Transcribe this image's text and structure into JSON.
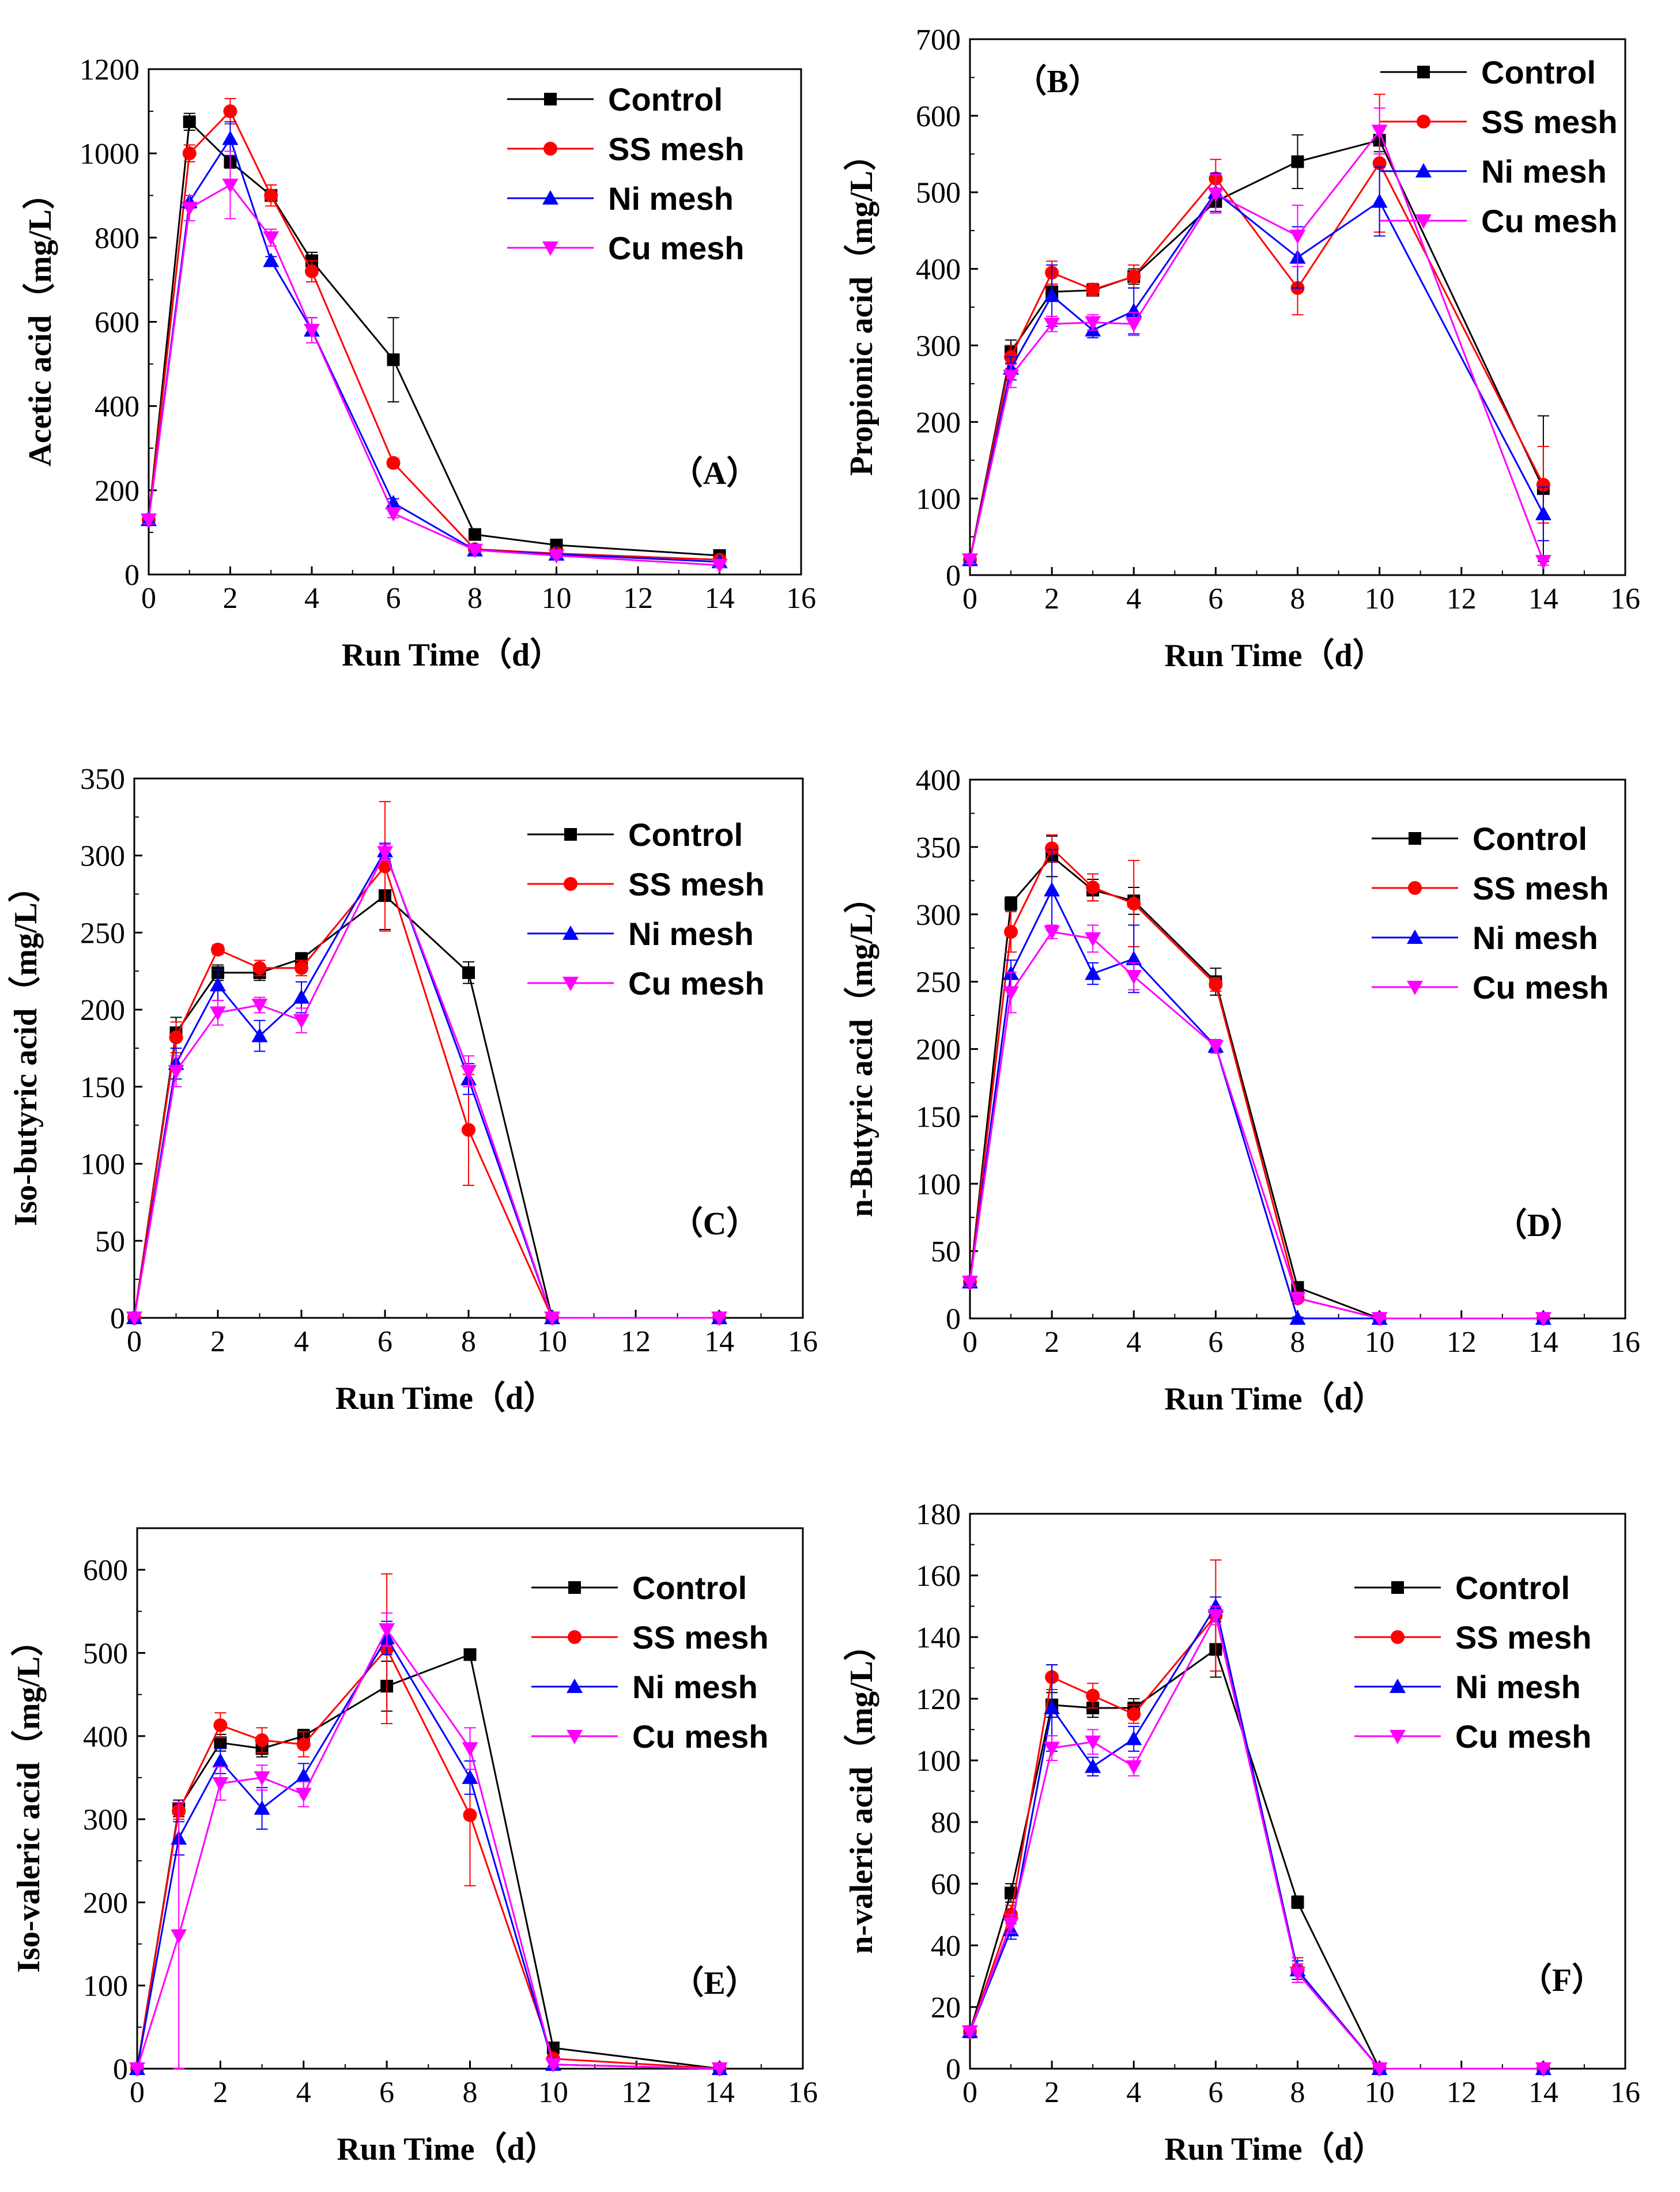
{
  "series_style": [
    {
      "name": "Control",
      "color": "#000000",
      "marker": "square"
    },
    {
      "name": "SS mesh",
      "color": "#ff0000",
      "marker": "circle"
    },
    {
      "name": "Ni mesh",
      "color": "#0000ff",
      "marker": "triangle-up"
    },
    {
      "name": "Cu mesh",
      "color": "#ff00ff",
      "marker": "triangle-down"
    }
  ],
  "chart_data": [
    {
      "type": "line",
      "panel_label": "（A）",
      "xlabel": "Run Time（d）",
      "ylabel": "Acetic acid（mg/L）",
      "xlim": [
        0,
        16
      ],
      "ylim": [
        0,
        1200
      ],
      "xticks": [
        0,
        2,
        4,
        6,
        8,
        10,
        12,
        14,
        16
      ],
      "yticks": [
        0,
        200,
        400,
        600,
        800,
        1000,
        1200
      ],
      "x": [
        0,
        1,
        2,
        3,
        4,
        6,
        8,
        10,
        14
      ],
      "series": [
        {
          "name": "Control",
          "values": [
            130,
            1075,
            980,
            900,
            745,
            510,
            95,
            70,
            45
          ],
          "errors": [
            10,
            20,
            15,
            10,
            20,
            100,
            8,
            8,
            5
          ]
        },
        {
          "name": "SS mesh",
          "values": [
            130,
            1000,
            1100,
            900,
            720,
            265,
            60,
            50,
            35
          ],
          "errors": [
            10,
            20,
            30,
            25,
            25,
            10,
            5,
            5,
            5
          ]
        },
        {
          "name": "Ni mesh",
          "values": [
            130,
            885,
            1035,
            745,
            580,
            170,
            58,
            48,
            30
          ],
          "errors": [
            10,
            15,
            40,
            10,
            30,
            10,
            5,
            5,
            5
          ]
        },
        {
          "name": "Cu mesh",
          "values": [
            130,
            870,
            925,
            800,
            580,
            145,
            58,
            45,
            22
          ],
          "errors": [
            10,
            30,
            80,
            20,
            30,
            10,
            5,
            5,
            5
          ]
        }
      ]
    },
    {
      "type": "line",
      "panel_label": "（B）",
      "xlabel": "Run Time（d）",
      "ylabel": "Propionic acid（mg/L）",
      "xlim": [
        0,
        16
      ],
      "ylim": [
        0,
        700
      ],
      "xticks": [
        0,
        2,
        4,
        6,
        8,
        10,
        12,
        14,
        16
      ],
      "yticks": [
        0,
        100,
        200,
        300,
        400,
        500,
        600,
        700
      ],
      "x": [
        0,
        1,
        2,
        3,
        4,
        6,
        8,
        10,
        14
      ],
      "series": [
        {
          "name": "Control",
          "values": [
            20,
            292,
            370,
            372,
            390,
            488,
            540,
            568,
            113
          ],
          "errors": [
            5,
            15,
            10,
            5,
            10,
            15,
            35,
            15,
            95
          ]
        },
        {
          "name": "SS mesh",
          "values": [
            20,
            285,
            395,
            373,
            390,
            518,
            375,
            538,
            118
          ],
          "errors": [
            5,
            15,
            15,
            8,
            15,
            25,
            35,
            90,
            50
          ]
        },
        {
          "name": "Ni mesh",
          "values": [
            20,
            270,
            365,
            320,
            345,
            500,
            415,
            488,
            80
          ],
          "errors": [
            5,
            15,
            40,
            10,
            30,
            25,
            40,
            45,
            35
          ]
        },
        {
          "name": "Cu mesh",
          "values": [
            20,
            260,
            328,
            330,
            328,
            498,
            443,
            580,
            18
          ],
          "errors": [
            5,
            15,
            10,
            10,
            15,
            25,
            40,
            30,
            5
          ]
        }
      ]
    },
    {
      "type": "line",
      "panel_label": "（C）",
      "xlabel": "Run Time（d）",
      "ylabel": "Iso-butyric acid（mg/L）",
      "xlim": [
        0,
        16
      ],
      "ylim": [
        0,
        350
      ],
      "xticks": [
        0,
        2,
        4,
        6,
        8,
        10,
        12,
        14,
        16
      ],
      "yticks": [
        0,
        50,
        100,
        150,
        200,
        250,
        300,
        350
      ],
      "x": [
        0,
        1,
        2,
        3,
        4,
        6,
        8,
        10,
        14
      ],
      "series": [
        {
          "name": "Control",
          "values": [
            0,
            185,
            224,
            224,
            233,
            274,
            224,
            0,
            0
          ],
          "errors": [
            1,
            10,
            5,
            5,
            4,
            22,
            7,
            1,
            1
          ]
        },
        {
          "name": "SS mesh",
          "values": [
            0,
            182,
            239,
            227,
            227,
            293,
            122,
            0,
            0
          ],
          "errors": [
            1,
            10,
            3,
            5,
            5,
            42,
            36,
            1,
            1
          ]
        },
        {
          "name": "Ni mesh",
          "values": [
            0,
            165,
            216,
            183,
            208,
            303,
            155,
            0,
            0
          ],
          "errors": [
            1,
            10,
            10,
            10,
            10,
            5,
            10,
            1,
            1
          ]
        },
        {
          "name": "Cu mesh",
          "values": [
            0,
            160,
            198,
            203,
            193,
            302,
            160,
            0,
            0
          ],
          "errors": [
            1,
            10,
            8,
            5,
            8,
            5,
            10,
            1,
            1
          ]
        }
      ]
    },
    {
      "type": "line",
      "panel_label": "（D）",
      "xlabel": "Run Time（d）",
      "ylabel": "n-Butyric acid（mg/L）",
      "xlim": [
        0,
        16
      ],
      "ylim": [
        0,
        400
      ],
      "xticks": [
        0,
        2,
        4,
        6,
        8,
        10,
        12,
        14,
        16
      ],
      "yticks": [
        0,
        50,
        100,
        150,
        200,
        250,
        300,
        350,
        400
      ],
      "x": [
        0,
        1,
        2,
        3,
        4,
        6,
        8,
        10,
        14
      ],
      "series": [
        {
          "name": "Control",
          "values": [
            27,
            308,
            343,
            318,
            310,
            250,
            23,
            0,
            0
          ],
          "errors": [
            3,
            5,
            15,
            8,
            10,
            10,
            3,
            1,
            1
          ]
        },
        {
          "name": "SS mesh",
          "values": [
            27,
            287,
            349,
            320,
            308,
            248,
            15,
            0,
            0
          ],
          "errors": [
            3,
            15,
            10,
            10,
            32,
            5,
            3,
            1,
            1
          ]
        },
        {
          "name": "Ni mesh",
          "values": [
            27,
            256,
            318,
            256,
            267,
            202,
            0,
            0,
            0
          ],
          "errors": [
            3,
            10,
            30,
            8,
            25,
            5,
            1,
            1,
            1
          ]
        },
        {
          "name": "Cu mesh",
          "values": [
            27,
            242,
            287,
            282,
            254,
            202,
            15,
            0,
            0
          ],
          "errors": [
            3,
            15,
            5,
            10,
            10,
            5,
            3,
            1,
            1
          ]
        }
      ]
    },
    {
      "type": "line",
      "panel_label": "（E）",
      "xlabel": "Run Time（d）",
      "ylabel": "Iso-valeric acid（mg/L）",
      "xlim": [
        0,
        16
      ],
      "ylim": [
        0,
        650
      ],
      "xticks": [
        0,
        2,
        4,
        6,
        8,
        10,
        12,
        14,
        16
      ],
      "yticks": [
        0,
        100,
        200,
        300,
        400,
        500,
        600
      ],
      "x": [
        0,
        1,
        2,
        3,
        4,
        6,
        8,
        10,
        14
      ],
      "series": [
        {
          "name": "Control",
          "values": [
            0,
            313,
            392,
            385,
            400,
            460,
            498,
            25,
            0
          ],
          "errors": [
            1,
            10,
            10,
            10,
            8,
            30,
            5,
            3,
            1
          ]
        },
        {
          "name": "SS mesh",
          "values": [
            0,
            310,
            413,
            395,
            390,
            505,
            305,
            12,
            0
          ],
          "errors": [
            1,
            10,
            15,
            15,
            15,
            90,
            85,
            3,
            1
          ]
        },
        {
          "name": "Ni mesh",
          "values": [
            0,
            277,
            370,
            313,
            352,
            518,
            350,
            5,
            0
          ],
          "errors": [
            1,
            20,
            15,
            25,
            15,
            20,
            20,
            3,
            1
          ]
        },
        {
          "name": "Cu mesh",
          "values": [
            0,
            160,
            343,
            350,
            330,
            528,
            385,
            5,
            0
          ],
          "errors": [
            1,
            160,
            20,
            15,
            15,
            20,
            25,
            3,
            1
          ]
        }
      ]
    },
    {
      "type": "line",
      "panel_label": "（F）",
      "xlabel": "Run Time（d）",
      "ylabel": "n-valeric acid（mg/L）",
      "xlim": [
        0,
        16
      ],
      "ylim": [
        0,
        180
      ],
      "xticks": [
        0,
        2,
        4,
        6,
        8,
        10,
        12,
        14,
        16
      ],
      "yticks": [
        0,
        20,
        40,
        60,
        80,
        100,
        120,
        140,
        160,
        180
      ],
      "x": [
        0,
        1,
        2,
        3,
        4,
        6,
        8,
        10,
        14
      ],
      "series": [
        {
          "name": "Control",
          "values": [
            12,
            57,
            118,
            117,
            117,
            136,
            54,
            0,
            0
          ],
          "errors": [
            1,
            3,
            4,
            3,
            3,
            9,
            2,
            0.5,
            0.5
          ]
        },
        {
          "name": "SS mesh",
          "values": [
            12,
            50,
            127,
            121,
            115,
            147,
            32,
            0,
            0
          ],
          "errors": [
            1,
            3,
            4,
            4,
            3,
            18,
            4,
            0.5,
            0.5
          ]
        },
        {
          "name": "Ni mesh",
          "values": [
            12,
            45,
            117,
            98,
            107,
            150,
            32,
            0,
            0
          ],
          "errors": [
            1,
            3,
            14,
            3,
            4,
            3,
            3,
            0.5,
            0.5
          ]
        },
        {
          "name": "Cu mesh",
          "values": [
            12,
            47,
            104,
            106,
            98,
            147,
            31,
            0,
            0
          ],
          "errors": [
            1,
            3,
            4,
            4,
            3,
            3,
            3,
            0.5,
            0.5
          ]
        }
      ]
    }
  ]
}
